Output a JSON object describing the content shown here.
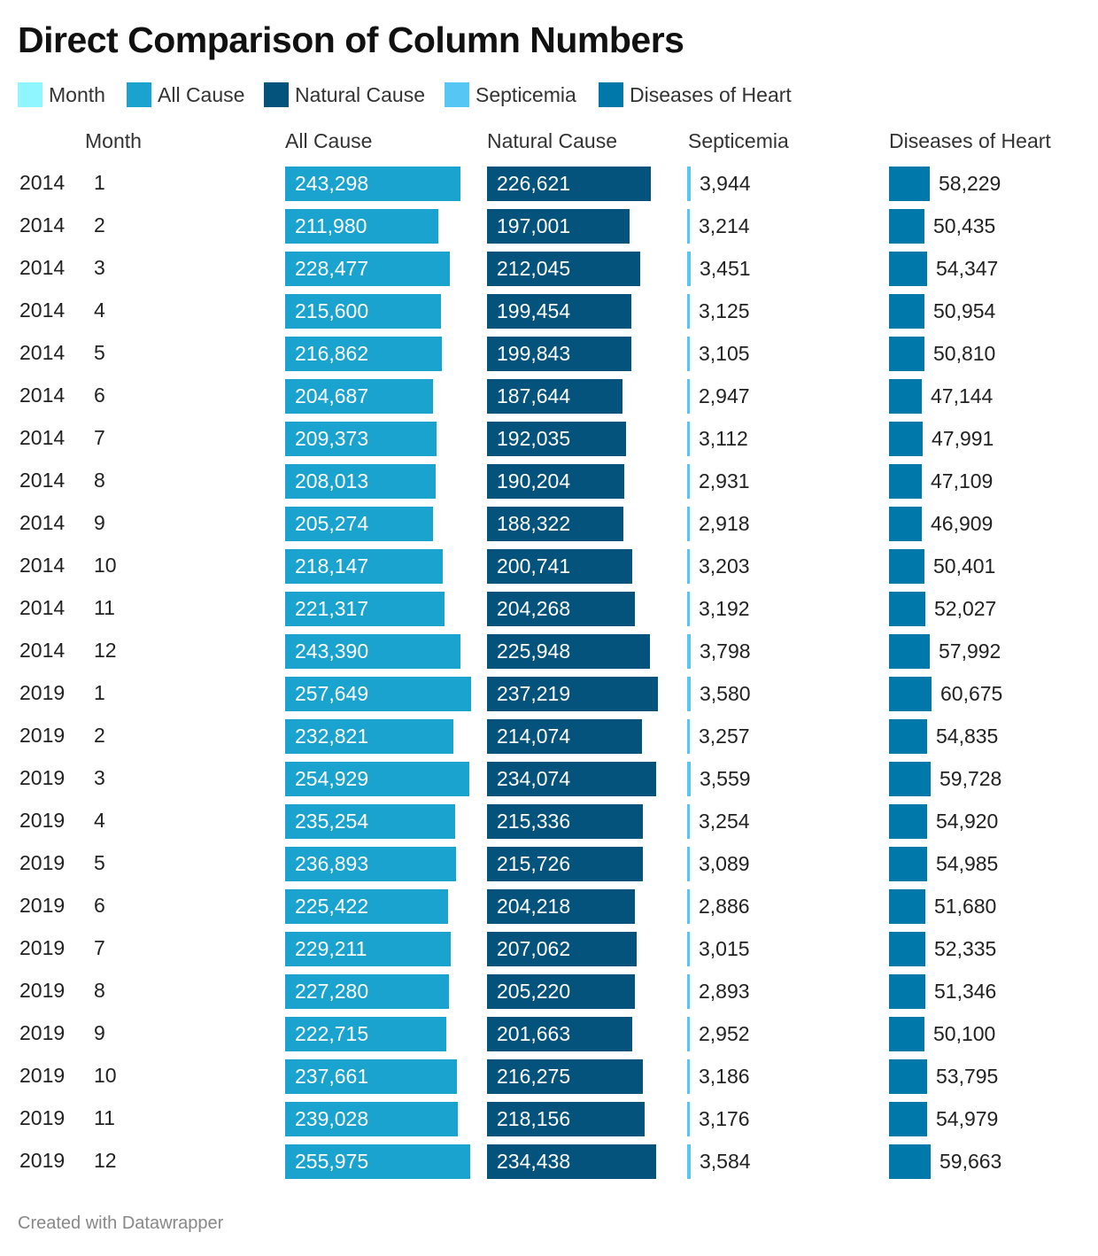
{
  "title": "Direct Comparison of Column Numbers",
  "legend": [
    {
      "label": "Month",
      "color": "#8ff5ff"
    },
    {
      "label": "All Cause",
      "color": "#1aa3cf"
    },
    {
      "label": "Natural Cause",
      "color": "#03537c"
    },
    {
      "label": "Septicemia",
      "color": "#56c7f5"
    },
    {
      "label": "Diseases of Heart",
      "color": "#0178aa"
    }
  ],
  "columns": {
    "month": "Month",
    "all_cause": "All Cause",
    "natural_cause": "Natural Cause",
    "septicemia": "Septicemia",
    "heart": "Diseases of Heart"
  },
  "chart_data": {
    "type": "table",
    "title": "Direct Comparison of Column Numbers",
    "columns": [
      "",
      "Month",
      "All Cause",
      "Natural Cause",
      "Septicemia",
      "Diseases of Heart"
    ],
    "rows": [
      {
        "year": "2014",
        "month": "1",
        "all_cause": 243298,
        "natural_cause": 226621,
        "septicemia": 3944,
        "heart": 58229
      },
      {
        "year": "2014",
        "month": "2",
        "all_cause": 211980,
        "natural_cause": 197001,
        "septicemia": 3214,
        "heart": 50435
      },
      {
        "year": "2014",
        "month": "3",
        "all_cause": 228477,
        "natural_cause": 212045,
        "septicemia": 3451,
        "heart": 54347
      },
      {
        "year": "2014",
        "month": "4",
        "all_cause": 215600,
        "natural_cause": 199454,
        "septicemia": 3125,
        "heart": 50954
      },
      {
        "year": "2014",
        "month": "5",
        "all_cause": 216862,
        "natural_cause": 199843,
        "septicemia": 3105,
        "heart": 50810
      },
      {
        "year": "2014",
        "month": "6",
        "all_cause": 204687,
        "natural_cause": 187644,
        "septicemia": 2947,
        "heart": 47144
      },
      {
        "year": "2014",
        "month": "7",
        "all_cause": 209373,
        "natural_cause": 192035,
        "septicemia": 3112,
        "heart": 47991
      },
      {
        "year": "2014",
        "month": "8",
        "all_cause": 208013,
        "natural_cause": 190204,
        "septicemia": 2931,
        "heart": 47109
      },
      {
        "year": "2014",
        "month": "9",
        "all_cause": 205274,
        "natural_cause": 188322,
        "septicemia": 2918,
        "heart": 46909
      },
      {
        "year": "2014",
        "month": "10",
        "all_cause": 218147,
        "natural_cause": 200741,
        "septicemia": 3203,
        "heart": 50401
      },
      {
        "year": "2014",
        "month": "11",
        "all_cause": 221317,
        "natural_cause": 204268,
        "septicemia": 3192,
        "heart": 52027
      },
      {
        "year": "2014",
        "month": "12",
        "all_cause": 243390,
        "natural_cause": 225948,
        "septicemia": 3798,
        "heart": 57992
      },
      {
        "year": "2019",
        "month": "1",
        "all_cause": 257649,
        "natural_cause": 237219,
        "septicemia": 3580,
        "heart": 60675
      },
      {
        "year": "2019",
        "month": "2",
        "all_cause": 232821,
        "natural_cause": 214074,
        "septicemia": 3257,
        "heart": 54835
      },
      {
        "year": "2019",
        "month": "3",
        "all_cause": 254929,
        "natural_cause": 234074,
        "septicemia": 3559,
        "heart": 59728
      },
      {
        "year": "2019",
        "month": "4",
        "all_cause": 235254,
        "natural_cause": 215336,
        "septicemia": 3254,
        "heart": 54920
      },
      {
        "year": "2019",
        "month": "5",
        "all_cause": 236893,
        "natural_cause": 215726,
        "septicemia": 3089,
        "heart": 54985
      },
      {
        "year": "2019",
        "month": "6",
        "all_cause": 225422,
        "natural_cause": 204218,
        "septicemia": 2886,
        "heart": 51680
      },
      {
        "year": "2019",
        "month": "7",
        "all_cause": 229211,
        "natural_cause": 207062,
        "septicemia": 3015,
        "heart": 52335
      },
      {
        "year": "2019",
        "month": "8",
        "all_cause": 227280,
        "natural_cause": 205220,
        "septicemia": 2893,
        "heart": 51346
      },
      {
        "year": "2019",
        "month": "9",
        "all_cause": 222715,
        "natural_cause": 201663,
        "septicemia": 2952,
        "heart": 50100
      },
      {
        "year": "2019",
        "month": "10",
        "all_cause": 237661,
        "natural_cause": 216275,
        "septicemia": 3186,
        "heart": 53795
      },
      {
        "year": "2019",
        "month": "11",
        "all_cause": 239028,
        "natural_cause": 218156,
        "septicemia": 3176,
        "heart": 54979
      },
      {
        "year": "2019",
        "month": "12",
        "all_cause": 255975,
        "natural_cause": 234438,
        "septicemia": 3584,
        "heart": 59663
      }
    ]
  },
  "footer": "Created with Datawrapper"
}
